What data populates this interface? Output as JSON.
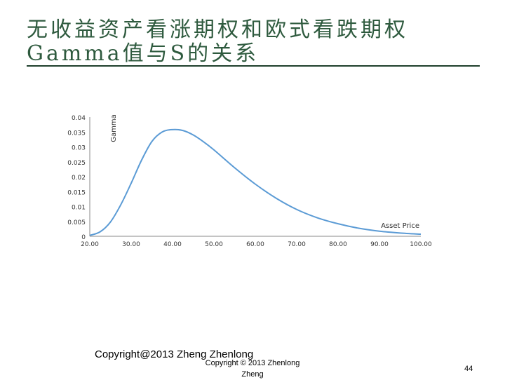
{
  "slide": {
    "title": "无收益资产看涨期权和欧式看跌期权Gamma值与S的关系",
    "footer_copyright": "Copyright@2013 Zheng Zhenlong",
    "footer_copyright_small": "Copyright © 2013 Zhenlong Zheng",
    "page_number": "44",
    "title_color": "#2e5a3e",
    "curve_color": "#5b9bd5"
  },
  "chart_data": {
    "type": "line",
    "title": "",
    "xlabel": "Asset Price",
    "ylabel": "Gamma",
    "xlim": [
      20,
      100
    ],
    "ylim": [
      0,
      0.04
    ],
    "x_ticks": [
      "20.00",
      "30.00",
      "40.00",
      "50.00",
      "60.00",
      "70.00",
      "80.00",
      "90.00",
      "100.00"
    ],
    "y_ticks": [
      "0",
      "0.005",
      "0.01",
      "0.015",
      "0.02",
      "0.025",
      "0.03",
      "0.035",
      "0.04"
    ],
    "grid": false,
    "series": [
      {
        "name": "",
        "x": [
          20,
          22.5,
          25,
          27.5,
          30,
          32.5,
          35,
          37.5,
          40,
          42.5,
          45,
          47.5,
          50,
          55,
          60,
          65,
          70,
          75,
          80,
          85,
          90,
          95,
          100
        ],
        "y": [
          0.0003,
          0.0015,
          0.0048,
          0.0106,
          0.0178,
          0.0255,
          0.0318,
          0.035,
          0.0358,
          0.0355,
          0.034,
          0.0317,
          0.029,
          0.023,
          0.0175,
          0.0128,
          0.009,
          0.0062,
          0.0042,
          0.0027,
          0.0017,
          0.0011,
          0.0007
        ]
      }
    ]
  }
}
